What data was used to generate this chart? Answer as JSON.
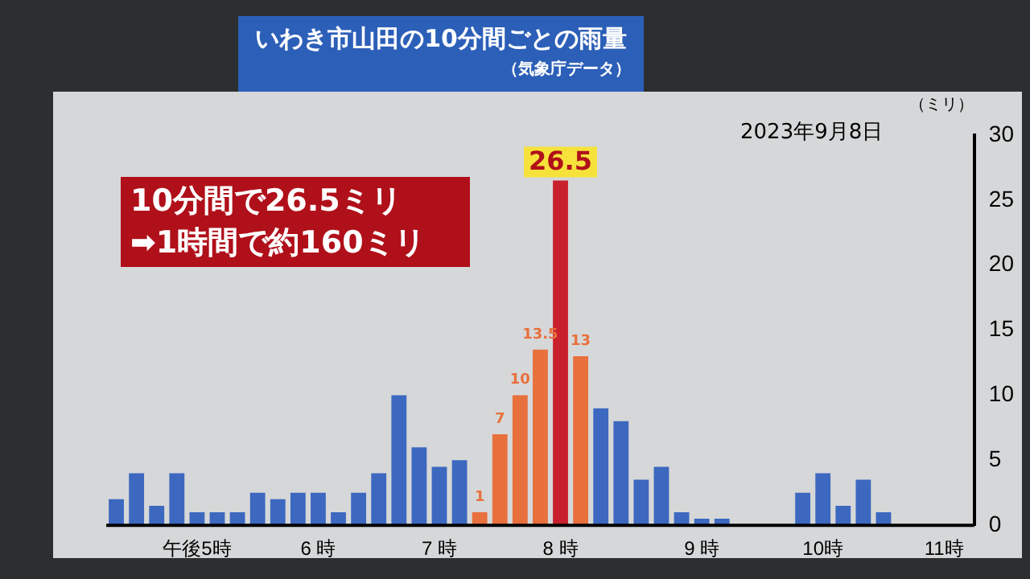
{
  "chart_data": {
    "type": "bar",
    "title": "いわき市山田の10分間ごとの雨量",
    "subtitle": "（気象庁データ）",
    "ylabel": "（ミリ）",
    "categories": [
      null,
      null,
      null,
      null,
      "午後5時",
      null,
      null,
      null,
      null,
      null,
      "6 時",
      null,
      null,
      null,
      null,
      null,
      "7 時",
      null,
      null,
      null,
      null,
      null,
      "8 時",
      null,
      null,
      null,
      null,
      null,
      null,
      "9 時",
      null,
      null,
      null,
      null,
      null,
      "10時",
      null,
      null,
      null,
      null,
      null,
      "11時",
      null
    ],
    "values": [
      2,
      4,
      1.5,
      4,
      1,
      1,
      1,
      2.5,
      2,
      2.5,
      2.5,
      1,
      2.5,
      4,
      10,
      6,
      4.5,
      5,
      1,
      7,
      10,
      13.5,
      26.5,
      13,
      9,
      8,
      3.5,
      4.5,
      1,
      0.5,
      0.5,
      0,
      0,
      0,
      2.5,
      4,
      1.5,
      3.5,
      1,
      0,
      0,
      0,
      0
    ],
    "colors": [
      "#3c68c0",
      "#3c68c0",
      "#3c68c0",
      "#3c68c0",
      "#3c68c0",
      "#3c68c0",
      "#3c68c0",
      "#3c68c0",
      "#3c68c0",
      "#3c68c0",
      "#3c68c0",
      "#3c68c0",
      "#3c68c0",
      "#3c68c0",
      "#3c68c0",
      "#3c68c0",
      "#3c68c0",
      "#3c68c0",
      "#e8703c",
      "#e8703c",
      "#e8703c",
      "#e8703c",
      "#c8202c",
      "#e8703c",
      "#3c68c0",
      "#3c68c0",
      "#3c68c0",
      "#3c68c0",
      "#3c68c0",
      "#3c68c0",
      "#3c68c0",
      "#3c68c0",
      "#3c68c0",
      "#3c68c0",
      "#3c68c0",
      "#3c68c0",
      "#3c68c0",
      "#3c68c0",
      "#3c68c0",
      "#3c68c0",
      "#3c68c0",
      "#3c68c0",
      "#3c68c0"
    ],
    "value_labels": [
      null,
      null,
      null,
      null,
      null,
      null,
      null,
      null,
      null,
      null,
      null,
      null,
      null,
      null,
      null,
      null,
      null,
      null,
      "1",
      "7",
      "10",
      "13.5",
      "26.5",
      "13",
      null,
      null,
      null,
      null,
      null,
      null,
      null,
      null,
      null,
      null,
      null,
      null,
      null,
      null,
      null,
      null,
      null,
      null,
      null
    ],
    "ylim": [
      0,
      30
    ],
    "yticks": [
      0,
      5,
      10,
      15,
      20,
      25,
      30
    ],
    "grid": false,
    "legend": false,
    "annotations": [
      "2023年9月8日",
      "10分間で26.5ミリ",
      "➡1時間で約160ミリ"
    ]
  }
}
